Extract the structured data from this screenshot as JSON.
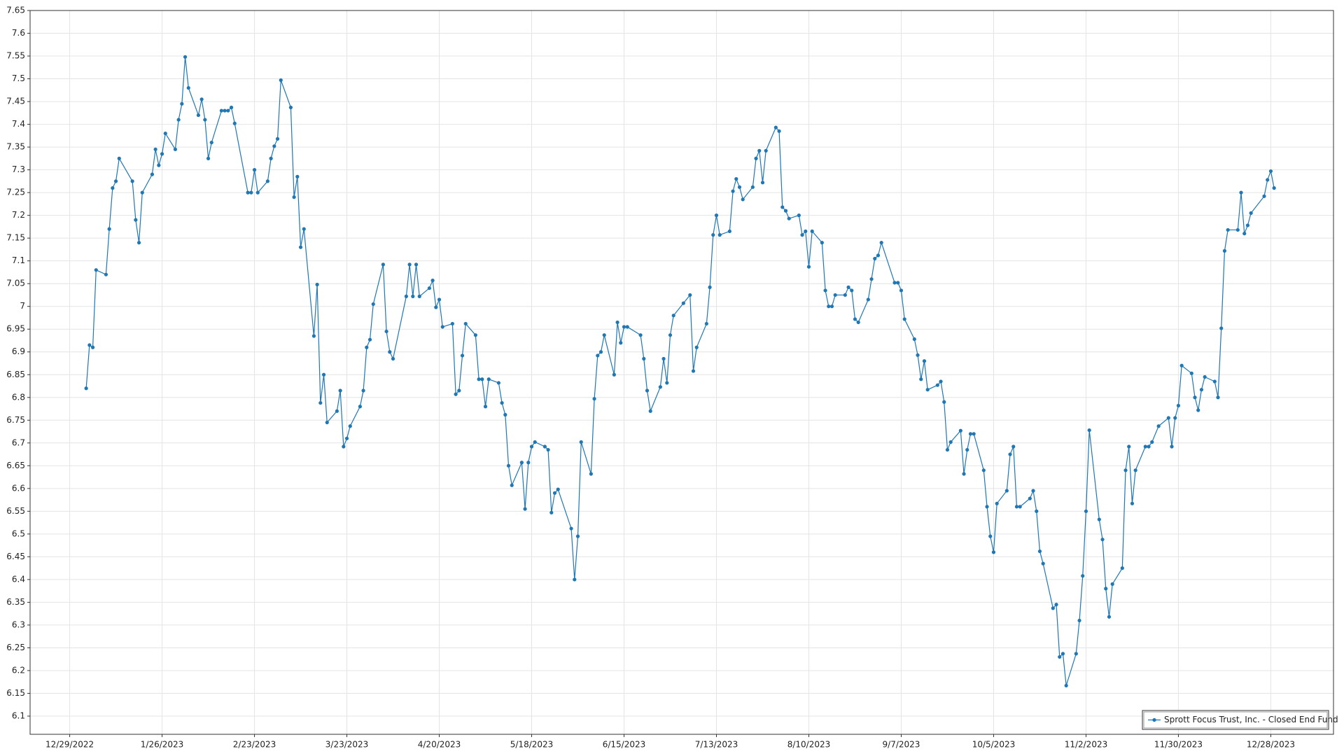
{
  "chart_data": {
    "type": "line",
    "x": [
      "1/3/2023",
      "1/4/2023",
      "1/5/2023",
      "1/6/2023",
      "1/9/2023",
      "1/10/2023",
      "1/11/2023",
      "1/12/2023",
      "1/13/2023",
      "1/17/2023",
      "1/18/2023",
      "1/19/2023",
      "1/20/2023",
      "1/23/2023",
      "1/24/2023",
      "1/25/2023",
      "1/26/2023",
      "1/27/2023",
      "1/30/2023",
      "1/31/2023",
      "2/1/2023",
      "2/2/2023",
      "2/3/2023",
      "2/6/2023",
      "2/7/2023",
      "2/8/2023",
      "2/9/2023",
      "2/10/2023",
      "2/13/2023",
      "2/14/2023",
      "2/15/2023",
      "2/16/2023",
      "2/17/2023",
      "2/21/2023",
      "2/22/2023",
      "2/23/2023",
      "2/24/2023",
      "2/27/2023",
      "2/28/2023",
      "3/1/2023",
      "3/2/2023",
      "3/3/2023",
      "3/6/2023",
      "3/7/2023",
      "3/8/2023",
      "3/9/2023",
      "3/10/2023",
      "3/13/2023",
      "3/14/2023",
      "3/15/2023",
      "3/16/2023",
      "3/17/2023",
      "3/20/2023",
      "3/21/2023",
      "3/22/2023",
      "3/23/2023",
      "3/24/2023",
      "3/27/2023",
      "3/28/2023",
      "3/29/2023",
      "3/30/2023",
      "3/31/2023",
      "4/3/2023",
      "4/4/2023",
      "4/5/2023",
      "4/6/2023",
      "4/10/2023",
      "4/11/2023",
      "4/12/2023",
      "4/13/2023",
      "4/14/2023",
      "4/17/2023",
      "4/18/2023",
      "4/19/2023",
      "4/20/2023",
      "4/21/2023",
      "4/24/2023",
      "4/25/2023",
      "4/26/2023",
      "4/27/2023",
      "4/28/2023",
      "5/1/2023",
      "5/2/2023",
      "5/3/2023",
      "5/4/2023",
      "5/5/2023",
      "5/8/2023",
      "5/9/2023",
      "5/10/2023",
      "5/11/2023",
      "5/12/2023",
      "5/15/2023",
      "5/16/2023",
      "5/17/2023",
      "5/18/2023",
      "5/19/2023",
      "5/22/2023",
      "5/23/2023",
      "5/24/2023",
      "5/25/2023",
      "5/26/2023",
      "5/30/2023",
      "5/31/2023",
      "6/1/2023",
      "6/2/2023",
      "6/5/2023",
      "6/6/2023",
      "6/7/2023",
      "6/8/2023",
      "6/9/2023",
      "6/12/2023",
      "6/13/2023",
      "6/14/2023",
      "6/15/2023",
      "6/16/2023",
      "6/20/2023",
      "6/21/2023",
      "6/22/2023",
      "6/23/2023",
      "6/26/2023",
      "6/27/2023",
      "6/28/2023",
      "6/29/2023",
      "6/30/2023",
      "7/3/2023",
      "7/5/2023",
      "7/6/2023",
      "7/7/2023",
      "7/10/2023",
      "7/11/2023",
      "7/12/2023",
      "7/13/2023",
      "7/14/2023",
      "7/17/2023",
      "7/18/2023",
      "7/19/2023",
      "7/20/2023",
      "7/21/2023",
      "7/24/2023",
      "7/25/2023",
      "7/26/2023",
      "7/27/2023",
      "7/28/2023",
      "7/31/2023",
      "8/1/2023",
      "8/2/2023",
      "8/3/2023",
      "8/4/2023",
      "8/7/2023",
      "8/8/2023",
      "8/9/2023",
      "8/10/2023",
      "8/11/2023",
      "8/14/2023",
      "8/15/2023",
      "8/16/2023",
      "8/17/2023",
      "8/18/2023",
      "8/21/2023",
      "8/22/2023",
      "8/23/2023",
      "8/24/2023",
      "8/25/2023",
      "8/28/2023",
      "8/29/2023",
      "8/30/2023",
      "8/31/2023",
      "9/1/2023",
      "9/5/2023",
      "9/6/2023",
      "9/7/2023",
      "9/8/2023",
      "9/11/2023",
      "9/12/2023",
      "9/13/2023",
      "9/14/2023",
      "9/15/2023",
      "9/18/2023",
      "9/19/2023",
      "9/20/2023",
      "9/21/2023",
      "9/22/2023",
      "9/25/2023",
      "9/26/2023",
      "9/27/2023",
      "9/28/2023",
      "9/29/2023",
      "10/2/2023",
      "10/3/2023",
      "10/4/2023",
      "10/5/2023",
      "10/6/2023",
      "10/9/2023",
      "10/10/2023",
      "10/11/2023",
      "10/12/2023",
      "10/13/2023",
      "10/16/2023",
      "10/17/2023",
      "10/18/2023",
      "10/19/2023",
      "10/20/2023",
      "10/23/2023",
      "10/24/2023",
      "10/25/2023",
      "10/26/2023",
      "10/27/2023",
      "10/30/2023",
      "10/31/2023",
      "11/1/2023",
      "11/2/2023",
      "11/3/2023",
      "11/6/2023",
      "11/7/2023",
      "11/8/2023",
      "11/9/2023",
      "11/10/2023",
      "11/13/2023",
      "11/14/2023",
      "11/15/2023",
      "11/16/2023",
      "11/17/2023",
      "11/20/2023",
      "11/21/2023",
      "11/22/2023",
      "11/24/2023",
      "11/27/2023",
      "11/28/2023",
      "11/29/2023",
      "11/30/2023",
      "12/1/2023",
      "12/4/2023",
      "12/5/2023",
      "12/6/2023",
      "12/7/2023",
      "12/8/2023",
      "12/11/2023",
      "12/12/2023",
      "12/13/2023",
      "12/14/2023",
      "12/15/2023",
      "12/18/2023",
      "12/19/2023",
      "12/20/2023",
      "12/21/2023",
      "12/22/2023",
      "12/26/2023",
      "12/27/2023",
      "12/28/2023",
      "12/29/2023"
    ],
    "series": [
      {
        "name": "Sprott Focus Trust, Inc. - Closed End Fund",
        "color": "#1f77b4",
        "values": [
          6.82,
          6.915,
          6.91,
          7.08,
          7.07,
          7.17,
          7.26,
          7.275,
          7.325,
          7.275,
          7.19,
          7.14,
          7.25,
          7.29,
          7.345,
          7.31,
          7.335,
          7.38,
          7.345,
          7.41,
          7.445,
          7.548,
          7.48,
          7.42,
          7.455,
          7.41,
          7.325,
          7.36,
          7.43,
          7.43,
          7.43,
          7.437,
          7.402,
          7.25,
          7.25,
          7.3,
          7.25,
          7.275,
          7.325,
          7.352,
          7.368,
          7.497,
          7.437,
          7.24,
          7.285,
          7.13,
          7.17,
          6.935,
          7.048,
          6.788,
          6.85,
          6.745,
          6.77,
          6.815,
          6.692,
          6.71,
          6.737,
          6.78,
          6.815,
          6.91,
          6.927,
          7.005,
          7.092,
          6.945,
          6.9,
          6.885,
          7.022,
          7.092,
          7.022,
          7.092,
          7.022,
          7.04,
          7.057,
          6.998,
          7.015,
          6.955,
          6.962,
          6.807,
          6.815,
          6.892,
          6.962,
          6.937,
          6.84,
          6.84,
          6.78,
          6.84,
          6.832,
          6.788,
          6.762,
          6.65,
          6.607,
          6.657,
          6.555,
          6.657,
          6.692,
          6.702,
          6.692,
          6.685,
          6.547,
          6.59,
          6.598,
          6.512,
          6.4,
          6.495,
          6.702,
          6.632,
          6.797,
          6.892,
          6.9,
          6.937,
          6.85,
          6.965,
          6.92,
          6.955,
          6.955,
          6.937,
          6.885,
          6.815,
          6.77,
          6.823,
          6.885,
          6.832,
          6.937,
          6.98,
          7.007,
          7.025,
          6.858,
          6.91,
          6.962,
          7.042,
          7.157,
          7.2,
          7.157,
          7.165,
          7.253,
          7.28,
          7.262,
          7.235,
          7.262,
          7.325,
          7.342,
          7.272,
          7.342,
          7.393,
          7.385,
          7.218,
          7.21,
          7.193,
          7.2,
          7.157,
          7.165,
          7.087,
          7.165,
          7.14,
          7.035,
          7,
          7,
          7.025,
          7.025,
          7.042,
          7.035,
          6.972,
          6.965,
          7.015,
          7.06,
          7.105,
          7.112,
          7.14,
          7.052,
          7.052,
          7.035,
          6.972,
          6.928,
          6.893,
          6.84,
          6.88,
          6.817,
          6.827,
          6.835,
          6.79,
          6.685,
          6.702,
          6.727,
          6.632,
          6.685,
          6.72,
          6.72,
          6.64,
          6.56,
          6.495,
          6.46,
          6.567,
          6.595,
          6.675,
          6.692,
          6.56,
          6.56,
          6.578,
          6.595,
          6.55,
          6.462,
          6.435,
          6.337,
          6.345,
          6.23,
          6.237,
          6.167,
          6.237,
          6.31,
          6.408,
          6.55,
          6.728,
          6.532,
          6.488,
          6.38,
          6.318,
          6.39,
          6.425,
          6.64,
          6.692,
          6.567,
          6.64,
          6.692,
          6.692,
          6.702,
          6.737,
          6.755,
          6.692,
          6.755,
          6.782,
          6.87,
          6.853,
          6.8,
          6.772,
          6.817,
          6.845,
          6.835,
          6.8,
          6.952,
          7.122,
          7.168,
          7.168,
          7.25,
          7.16,
          7.178,
          7.205,
          7.242,
          7.278,
          7.297,
          7.26
        ]
      }
    ],
    "xlim": [
      "12/17/2022",
      "1/16/2024"
    ],
    "xticks": [
      "12/29/2022",
      "1/26/2023",
      "2/23/2023",
      "3/23/2023",
      "4/20/2023",
      "5/18/2023",
      "6/15/2023",
      "7/13/2023",
      "8/10/2023",
      "9/7/2023",
      "10/5/2023",
      "11/2/2023",
      "11/30/2023",
      "12/28/2023"
    ],
    "ylim": [
      6.06,
      7.65
    ],
    "yticks": [
      6.1,
      6.15,
      6.2,
      6.25,
      6.3,
      6.35,
      6.4,
      6.45,
      6.5,
      6.55,
      6.6,
      6.65,
      6.7,
      6.75,
      6.8,
      6.85,
      6.9,
      6.95,
      7,
      7.05,
      7.1,
      7.15,
      7.2,
      7.25,
      7.3,
      7.35,
      7.4,
      7.45,
      7.5,
      7.55,
      7.6,
      7.65
    ],
    "grid": true,
    "legend": "lower right"
  }
}
